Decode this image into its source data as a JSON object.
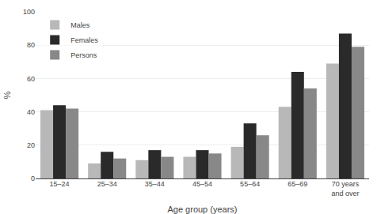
{
  "chart_data": {
    "type": "bar",
    "categories": [
      "15–24",
      "25–34",
      "35–44",
      "45–54",
      "55–64",
      "65–69",
      "70 years\nand over"
    ],
    "series": [
      {
        "name": "Males",
        "color": "#b8b8b8",
        "values": [
          41,
          9,
          11,
          13,
          19,
          43,
          69
        ]
      },
      {
        "name": "Females",
        "color": "#2a2a2a",
        "values": [
          44,
          16,
          17,
          17,
          33,
          64,
          87
        ]
      },
      {
        "name": "Persons",
        "color": "#888888",
        "values": [
          42,
          12,
          13,
          15,
          26,
          54,
          79
        ]
      }
    ],
    "xlabel": "Age group (years)",
    "ylabel": "%",
    "ylim": [
      0,
      100
    ],
    "yticks": [
      0,
      20,
      40,
      60,
      80,
      100
    ],
    "grid": true,
    "legend": "upper left"
  }
}
